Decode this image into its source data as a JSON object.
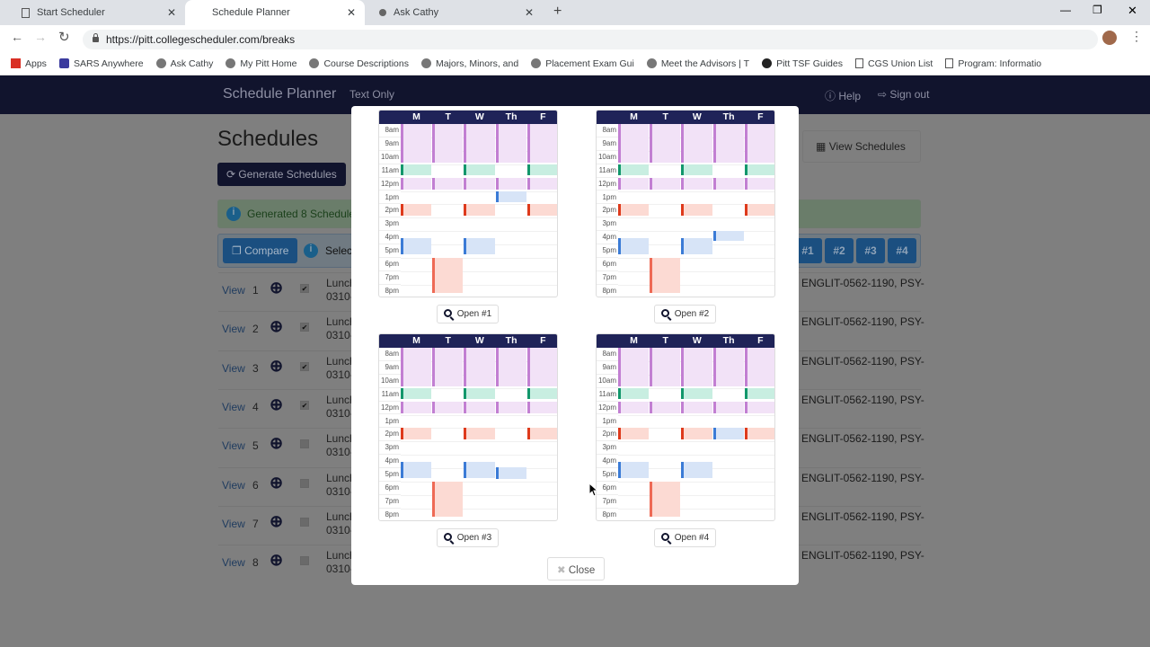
{
  "browser": {
    "tabs": [
      {
        "label": "Start Scheduler"
      },
      {
        "label": "Schedule Planner"
      },
      {
        "label": "Ask Cathy"
      }
    ],
    "url": "https://pitt.collegescheduler.com/breaks",
    "bookmarks": [
      "Apps",
      "SARS Anywhere",
      "Ask Cathy",
      "My Pitt Home",
      "Course Descriptions",
      "Majors, Minors, and",
      "Placement Exam Gui",
      "Meet the Advisors | T",
      "Pitt TSF Guides",
      "CGS Union List",
      "Program: Informatio"
    ]
  },
  "nav": {
    "brand": "Schedule Planner",
    "text_only": "Text Only",
    "help": "Help",
    "sign_out": "Sign out"
  },
  "page": {
    "title": "Schedules",
    "generate": "Generate Schedules",
    "view_schedules": "View Schedules",
    "alert": "Generated 8 Schedules",
    "compare": "Compare",
    "select": "Select",
    "compare_tabs": [
      "#1",
      "#2",
      "#3",
      "#4"
    ],
    "rows": [
      {
        "view": "View",
        "num": "1",
        "checked": true,
        "l1": "Lunch",
        "l2": "0310-",
        "right": "ENGLIT-0562-1190, PSY-"
      },
      {
        "view": "View",
        "num": "2",
        "checked": true,
        "l1": "Lunch",
        "l2": "0310-",
        "right": "ENGLIT-0562-1190, PSY-"
      },
      {
        "view": "View",
        "num": "3",
        "checked": true,
        "l1": "Lunch",
        "l2": "0310-",
        "right": "ENGLIT-0562-1190, PSY-"
      },
      {
        "view": "View",
        "num": "4",
        "checked": true,
        "l1": "Lunch",
        "l2": "0310-",
        "right": "ENGLIT-0562-1190, PSY-"
      },
      {
        "view": "View",
        "num": "5",
        "checked": false,
        "l1": "Lunch",
        "l2": "0310-",
        "right": "ENGLIT-0562-1190, PSY-"
      },
      {
        "view": "View",
        "num": "6",
        "checked": false,
        "l1": "Lunch",
        "l2": "0310-",
        "right": "ENGLIT-0562-1190, PSY-"
      },
      {
        "view": "View",
        "num": "7",
        "checked": false,
        "l1": "Lunch",
        "l2": "0310-",
        "right": "ENGLIT-0562-1190, PSY-"
      },
      {
        "view": "View",
        "num": "8",
        "checked": false,
        "l1": "Lunch",
        "l2": "0310-",
        "right": "ENGLIT-0562-1190, PSY-"
      }
    ]
  },
  "modal": {
    "days": [
      "M",
      "T",
      "W",
      "Th",
      "F"
    ],
    "times": [
      "8am",
      "9am",
      "10am",
      "11am",
      "12pm",
      "1pm",
      "2pm",
      "3pm",
      "4pm",
      "5pm",
      "6pm",
      "7pm",
      "8pm"
    ],
    "close": "Close",
    "colors": {
      "purple": [
        "#f2e2f7",
        "#c27fd2"
      ],
      "green": [
        "#c8eee1",
        "#12976b"
      ],
      "red": [
        "#fcdad3",
        "#de3a1c"
      ],
      "salmon": [
        "#fcdad3",
        "#ee6a55"
      ],
      "blue": [
        "#d7e4f7",
        "#3b7bd6"
      ]
    },
    "schedules": [
      {
        "open": "Open #1",
        "extra": [
          {
            "day": 3,
            "start": 13,
            "end": 13.85,
            "c": "blue"
          },
          {
            "day": 0,
            "start": 16.5,
            "end": 17.7,
            "c": "blue"
          },
          {
            "day": 2,
            "start": 16.5,
            "end": 17.7,
            "c": "blue"
          }
        ]
      },
      {
        "open": "Open #2",
        "extra": [
          {
            "day": 3,
            "start": 16,
            "end": 16.75,
            "c": "blue"
          },
          {
            "day": 0,
            "start": 16.5,
            "end": 17.7,
            "c": "blue"
          },
          {
            "day": 2,
            "start": 16.5,
            "end": 17.7,
            "c": "blue"
          }
        ]
      },
      {
        "open": "Open #3",
        "extra": [
          {
            "day": 0,
            "start": 16.5,
            "end": 17.7,
            "c": "blue"
          },
          {
            "day": 2,
            "start": 16.5,
            "end": 17.7,
            "c": "blue"
          },
          {
            "day": 3,
            "start": 16.95,
            "end": 17.8,
            "c": "blue"
          }
        ]
      },
      {
        "open": "Open #4",
        "extra": [
          {
            "day": 3,
            "start": 14,
            "end": 14.85,
            "c": "blue"
          },
          {
            "day": 0,
            "start": 16.5,
            "end": 17.7,
            "c": "blue"
          },
          {
            "day": 2,
            "start": 16.5,
            "end": 17.7,
            "c": "blue"
          }
        ]
      }
    ],
    "common": [
      {
        "days": [
          0,
          1,
          2,
          3,
          4
        ],
        "start": 8,
        "end": 10.9,
        "c": "purple"
      },
      {
        "days": [
          0,
          2,
          4
        ],
        "start": 11,
        "end": 11.85,
        "c": "green"
      },
      {
        "days": [
          0,
          1,
          2,
          3,
          4
        ],
        "start": 12,
        "end": 12.9,
        "c": "purple"
      },
      {
        "days": [
          0,
          2,
          4
        ],
        "start": 14,
        "end": 14.85,
        "c": "red"
      },
      {
        "days": [
          1
        ],
        "start": 18,
        "end": 20.6,
        "c": "salmon"
      }
    ]
  }
}
